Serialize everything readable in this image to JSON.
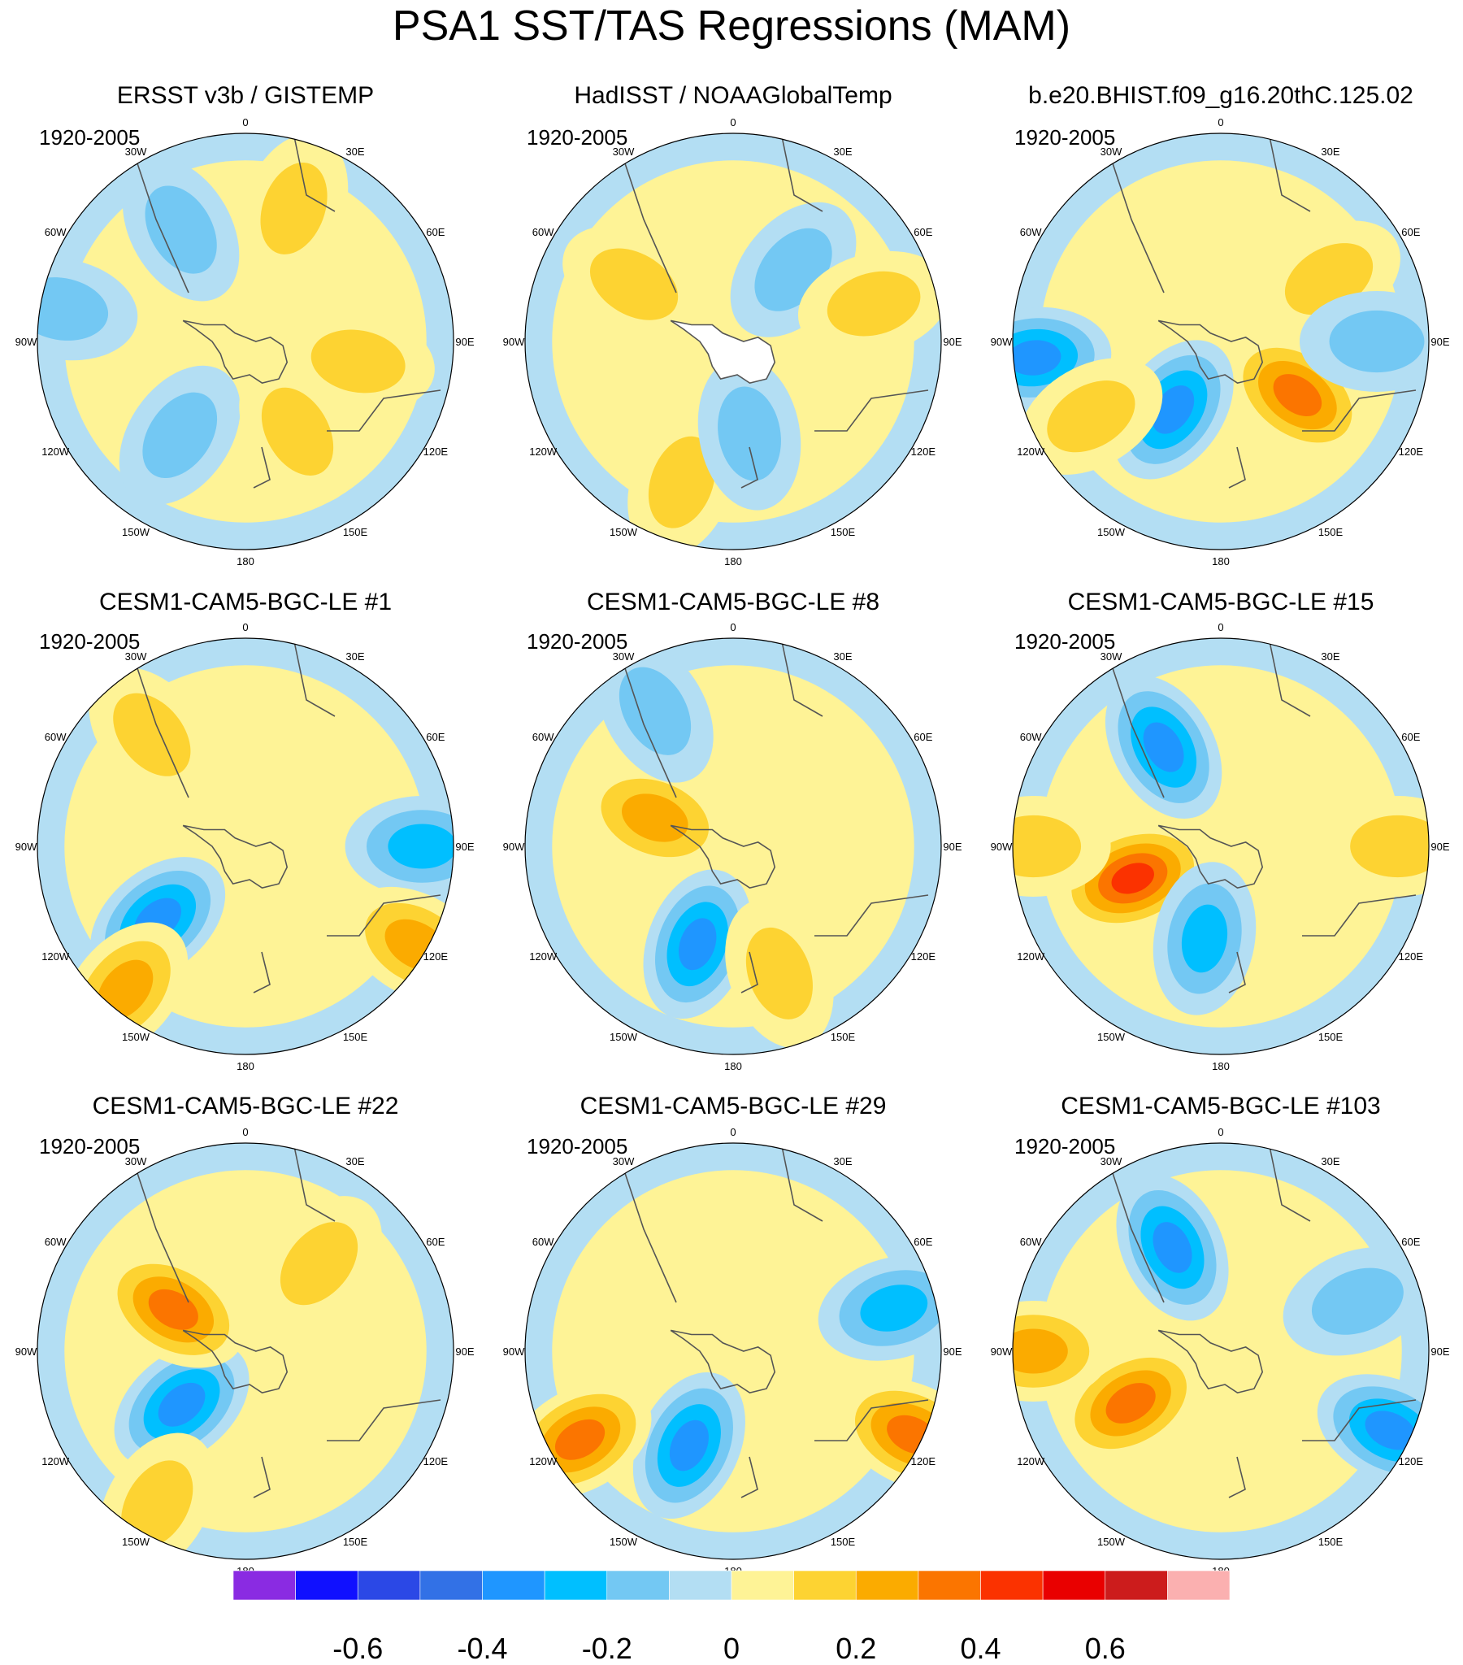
{
  "chart_data": {
    "type": "polar-contour-map-panel",
    "title": "PSA1 SST/TAS Regressions (MAM)",
    "panels": [
      {
        "title": "ERSST v3b / GISTEMP",
        "period": "1920-2005",
        "land_masked": true,
        "features": [
          {
            "lon": 330,
            "r": 0.62,
            "value": -0.12
          },
          {
            "lon": 215,
            "r": 0.55,
            "value": -0.12
          },
          {
            "lon": 150,
            "r": 0.5,
            "value": 0.15
          },
          {
            "lon": 280,
            "r": 0.9,
            "value": -0.1
          },
          {
            "lon": 20,
            "r": 0.68,
            "value": 0.05
          },
          {
            "lon": 100,
            "r": 0.55,
            "value": 0.05
          }
        ]
      },
      {
        "title": "HadISST / NOAAGlobalTemp",
        "period": "1920-2005",
        "land_masked": true,
        "features": [
          {
            "lon": 40,
            "r": 0.45,
            "value": -0.12
          },
          {
            "lon": 75,
            "r": 0.7,
            "value": 0.1
          },
          {
            "lon": 200,
            "r": 0.72,
            "value": 0.15
          },
          {
            "lon": 170,
            "r": 0.45,
            "value": -0.1
          },
          {
            "lon": 300,
            "r": 0.55,
            "value": 0.05
          }
        ]
      },
      {
        "title": "b.e20.BHIST.f09_g16.20thC.125.02",
        "period": "1920-2005",
        "land_masked": false,
        "features": [
          {
            "lon": 125,
            "r": 0.45,
            "value": 0.3
          },
          {
            "lon": 215,
            "r": 0.4,
            "value": -0.3
          },
          {
            "lon": 265,
            "r": 0.9,
            "value": -0.25
          },
          {
            "lon": 240,
            "r": 0.72,
            "value": 0.15
          },
          {
            "lon": 60,
            "r": 0.6,
            "value": 0.15
          },
          {
            "lon": 90,
            "r": 0.75,
            "value": -0.15
          }
        ]
      },
      {
        "title": "CESM1-CAM5-BGC-LE #1",
        "period": "1920-2005",
        "land_masked": false,
        "features": [
          {
            "lon": 230,
            "r": 0.55,
            "value": -0.25
          },
          {
            "lon": 220,
            "r": 0.9,
            "value": 0.2
          },
          {
            "lon": 320,
            "r": 0.7,
            "value": 0.15
          },
          {
            "lon": 90,
            "r": 0.85,
            "value": -0.2
          },
          {
            "lon": 120,
            "r": 0.95,
            "value": 0.2
          }
        ]
      },
      {
        "title": "CESM1-CAM5-BGC-LE #8",
        "period": "1920-2005",
        "land_masked": false,
        "features": [
          {
            "lon": 200,
            "r": 0.5,
            "value": -0.25
          },
          {
            "lon": 290,
            "r": 0.4,
            "value": 0.2
          },
          {
            "lon": 330,
            "r": 0.75,
            "value": -0.12
          },
          {
            "lon": 160,
            "r": 0.65,
            "value": 0.05
          }
        ]
      },
      {
        "title": "CESM1-CAM5-BGC-LE #15",
        "period": "1920-2005",
        "land_masked": false,
        "features": [
          {
            "lon": 250,
            "r": 0.45,
            "value": 0.4
          },
          {
            "lon": 330,
            "r": 0.55,
            "value": -0.25
          },
          {
            "lon": 190,
            "r": 0.45,
            "value": -0.2
          },
          {
            "lon": 270,
            "r": 0.9,
            "value": 0.15
          },
          {
            "lon": 90,
            "r": 0.85,
            "value": 0.15
          }
        ]
      },
      {
        "title": "CESM1-CAM5-BGC-LE #22",
        "period": "1920-2005",
        "land_masked": false,
        "features": [
          {
            "lon": 230,
            "r": 0.4,
            "value": -0.25
          },
          {
            "lon": 300,
            "r": 0.4,
            "value": 0.25
          },
          {
            "lon": 210,
            "r": 0.85,
            "value": 0.15
          },
          {
            "lon": 40,
            "r": 0.55,
            "value": 0.05
          }
        ]
      },
      {
        "title": "CESM1-CAM5-BGC-LE #29",
        "period": "1920-2005",
        "land_masked": false,
        "features": [
          {
            "lon": 205,
            "r": 0.5,
            "value": -0.3
          },
          {
            "lon": 240,
            "r": 0.85,
            "value": 0.25
          },
          {
            "lon": 75,
            "r": 0.8,
            "value": -0.2
          },
          {
            "lon": 115,
            "r": 0.95,
            "value": 0.3
          }
        ]
      },
      {
        "title": "CESM1-CAM5-BGC-LE #103",
        "period": "1920-2005",
        "land_masked": false,
        "features": [
          {
            "lon": 240,
            "r": 0.5,
            "value": 0.25
          },
          {
            "lon": 335,
            "r": 0.55,
            "value": -0.25
          },
          {
            "lon": 115,
            "r": 0.9,
            "value": -0.3
          },
          {
            "lon": 270,
            "r": 0.9,
            "value": 0.2
          },
          {
            "lon": 70,
            "r": 0.7,
            "value": -0.15
          }
        ]
      }
    ],
    "lon_labels": [
      "0",
      "30E",
      "60E",
      "90E",
      "120E",
      "150E",
      "180",
      "150W",
      "120W",
      "90W",
      "60W",
      "30W"
    ],
    "colorbar": {
      "levels": [
        -0.7,
        -0.6,
        -0.5,
        -0.4,
        -0.3,
        -0.2,
        -0.1,
        0,
        0.1,
        0.2,
        0.3,
        0.4,
        0.5,
        0.6,
        0.7
      ],
      "colors": [
        "#8a2be2",
        "#1010ff",
        "#2b48e6",
        "#3271e6",
        "#1f96ff",
        "#00bfff",
        "#73c8f3",
        "#b3def3",
        "#fef396",
        "#fdd332",
        "#fbab00",
        "#fb7500",
        "#fb3200",
        "#e90000",
        "#cc1c1c",
        "#fbb0b0"
      ],
      "tick_values": [
        "-0.6",
        "-0.4",
        "-0.2",
        "0",
        "0.2",
        "0.4",
        "0.6"
      ]
    }
  }
}
